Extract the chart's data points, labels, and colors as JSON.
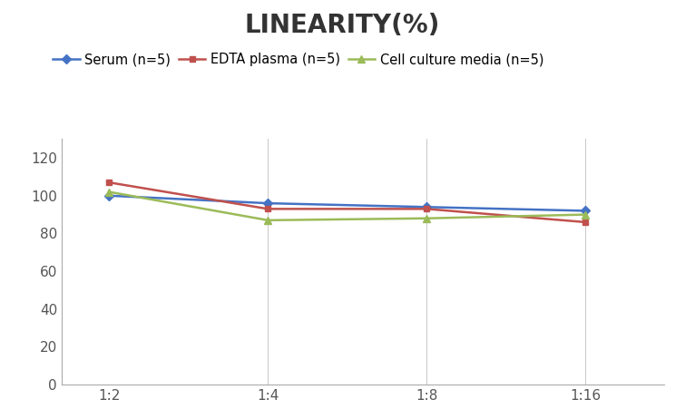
{
  "title": "LINEARITY(%)",
  "title_fontsize": 20,
  "title_fontweight": "bold",
  "x_labels": [
    "1:2",
    "1:4",
    "1:8",
    "1:16"
  ],
  "x_positions": [
    0,
    1,
    2,
    3
  ],
  "series": [
    {
      "label": "Serum (n=5)",
      "values": [
        100,
        96,
        94,
        92
      ],
      "color": "#4472C4",
      "marker": "D",
      "markersize": 5,
      "linewidth": 1.8
    },
    {
      "label": "EDTA plasma (n=5)",
      "values": [
        107,
        93,
        93,
        86
      ],
      "color": "#C0504D",
      "marker": "s",
      "markersize": 5,
      "linewidth": 1.8
    },
    {
      "label": "Cell culture media (n=5)",
      "values": [
        102,
        87,
        88,
        90
      ],
      "color": "#9BBB59",
      "marker": "^",
      "markersize": 6,
      "linewidth": 1.8
    }
  ],
  "ylim": [
    0,
    130
  ],
  "yticks": [
    0,
    20,
    40,
    60,
    80,
    100,
    120
  ],
  "background_color": "#ffffff",
  "legend_fontsize": 10.5,
  "tick_fontsize": 11,
  "grid_color": "#CCCCCC",
  "spine_color": "#AAAAAA",
  "title_color": "#333333",
  "tick_color": "#555555"
}
